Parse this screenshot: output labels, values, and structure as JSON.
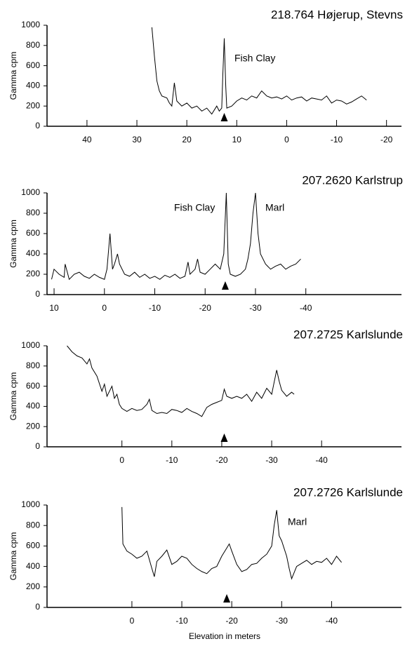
{
  "chart_data": [
    {
      "type": "line",
      "title": "218.764 Højerup, Stevns",
      "ylabel": "Gamma cpm",
      "color": "#000000",
      "xlim": [
        48,
        -23
      ],
      "ylim": [
        0,
        1000
      ],
      "xticks": [
        40,
        30,
        20,
        10,
        0,
        -10,
        -20
      ],
      "yticks": [
        0,
        200,
        400,
        600,
        800,
        1000
      ],
      "annotations": [
        "Fish Clay"
      ],
      "marker_x": 12.5,
      "x": [
        27,
        26.5,
        26,
        25.5,
        25,
        24,
        23.5,
        23,
        22.5,
        22,
        21,
        20,
        19,
        18,
        17,
        16,
        15,
        14,
        13.5,
        13,
        12.8,
        12.5,
        12.2,
        12,
        11,
        10,
        9,
        8,
        7,
        6,
        5,
        4,
        3,
        2,
        1,
        0,
        -1,
        -2,
        -3,
        -4,
        -5,
        -6,
        -7,
        -8,
        -9,
        -10,
        -11,
        -12,
        -13,
        -14,
        -15,
        -16
      ],
      "values": [
        980,
        700,
        450,
        350,
        300,
        280,
        230,
        200,
        430,
        250,
        200,
        230,
        180,
        200,
        150,
        180,
        120,
        200,
        150,
        180,
        500,
        870,
        400,
        180,
        200,
        250,
        280,
        260,
        300,
        280,
        350,
        300,
        280,
        290,
        270,
        300,
        260,
        280,
        290,
        250,
        280,
        270,
        260,
        300,
        230,
        260,
        250,
        220,
        240,
        270,
        300,
        260
      ]
    },
    {
      "type": "line",
      "title": "207.2620 Karlstrup",
      "ylabel": "Gamma cpm",
      "color": "#000000",
      "xlim": [
        11.4,
        -59
      ],
      "ylim": [
        0,
        1000
      ],
      "xticks": [
        10,
        0,
        -10,
        -20,
        -30,
        -40
      ],
      "yticks": [
        0,
        200,
        400,
        600,
        800,
        1000
      ],
      "annotations": [
        "Fish Clay",
        "Marl"
      ],
      "marker_x": -24,
      "x": [
        10.5,
        10,
        9,
        8,
        7.8,
        7,
        6,
        5,
        4,
        3,
        2,
        1,
        0,
        -0.5,
        -1.1,
        -1.6,
        -2,
        -2.6,
        -3,
        -4,
        -5,
        -6,
        -7,
        -8,
        -9,
        -10,
        -11,
        -12,
        -13,
        -14,
        -15,
        -16,
        -16.6,
        -17,
        -18,
        -18.5,
        -19,
        -20,
        -21,
        -22,
        -23,
        -23.7,
        -24.2,
        -24.6,
        -25,
        -26,
        -27,
        -28,
        -28.5,
        -29,
        -29.5,
        -30,
        -30.5,
        -31,
        -32,
        -33,
        -34,
        -35,
        -36,
        -37,
        -38,
        -39
      ],
      "values": [
        150,
        250,
        200,
        170,
        300,
        150,
        200,
        220,
        180,
        160,
        200,
        170,
        150,
        250,
        600,
        250,
        300,
        400,
        300,
        200,
        180,
        220,
        170,
        200,
        160,
        180,
        150,
        190,
        170,
        200,
        160,
        180,
        320,
        200,
        250,
        350,
        220,
        200,
        250,
        300,
        250,
        400,
        1000,
        300,
        200,
        180,
        200,
        250,
        350,
        500,
        800,
        1000,
        600,
        400,
        300,
        250,
        280,
        300,
        250,
        280,
        300,
        350
      ]
    },
    {
      "type": "line",
      "title": "207.2725 Karlslunde",
      "ylabel": "Gamma cpm",
      "color": "#000000",
      "xlim": [
        15,
        -56
      ],
      "ylim": [
        0,
        1000
      ],
      "xticks": [
        0,
        -10,
        -20,
        -30,
        -40
      ],
      "yticks": [
        0,
        200,
        400,
        600,
        800,
        1000
      ],
      "annotations": [],
      "marker_x": -20.5,
      "x": [
        11,
        10,
        9,
        8,
        7,
        6.5,
        6,
        5,
        4,
        3.5,
        3,
        2,
        1.5,
        1,
        0.5,
        0,
        -1,
        -2,
        -3,
        -4,
        -5,
        -5.5,
        -6,
        -7,
        -8,
        -9,
        -10,
        -11,
        -12,
        -13,
        -14,
        -15,
        -16,
        -17,
        -18,
        -19,
        -20,
        -20.5,
        -21,
        -22,
        -23,
        -24,
        -25,
        -26,
        -27,
        -28,
        -29,
        -30,
        -30.5,
        -31,
        -31.5,
        -32,
        -33,
        -34,
        -34.5
      ],
      "values": [
        1000,
        940,
        900,
        880,
        820,
        870,
        780,
        700,
        550,
        620,
        500,
        600,
        480,
        520,
        420,
        380,
        350,
        380,
        360,
        370,
        420,
        470,
        360,
        330,
        340,
        330,
        370,
        360,
        340,
        380,
        350,
        330,
        300,
        390,
        420,
        440,
        460,
        570,
        500,
        480,
        500,
        480,
        520,
        450,
        540,
        480,
        580,
        520,
        640,
        760,
        650,
        560,
        500,
        540,
        520
      ]
    },
    {
      "type": "line",
      "title": "207.2726 Karlslunde",
      "ylabel": "Gamma cpm",
      "xlabel": "Elevation in meters",
      "color": "#000000",
      "xlim": [
        17,
        -54
      ],
      "ylim": [
        0,
        1000
      ],
      "xticks": [
        0,
        -10,
        -20,
        -30,
        -40
      ],
      "yticks": [
        0,
        200,
        400,
        600,
        800,
        1000
      ],
      "annotations": [
        "Marl"
      ],
      "marker_x": -19,
      "x": [
        2,
        1.8,
        1,
        0,
        -1,
        -2,
        -3,
        -4,
        -4.5,
        -5,
        -6,
        -7,
        -8,
        -9,
        -10,
        -11,
        -12,
        -13,
        -14,
        -15,
        -16,
        -17,
        -18,
        -19,
        -19.5,
        -20,
        -21,
        -22,
        -23,
        -24,
        -25,
        -26,
        -27,
        -28,
        -28.5,
        -29,
        -29.5,
        -30,
        -31,
        -31.5,
        -32,
        -33,
        -34,
        -35,
        -36,
        -37,
        -38,
        -39,
        -40,
        -41,
        -42
      ],
      "values": [
        980,
        620,
        550,
        520,
        480,
        500,
        550,
        380,
        300,
        450,
        500,
        560,
        420,
        450,
        500,
        480,
        420,
        380,
        350,
        330,
        380,
        400,
        500,
        580,
        620,
        550,
        420,
        350,
        370,
        420,
        430,
        480,
        520,
        600,
        800,
        950,
        700,
        650,
        500,
        380,
        280,
        400,
        430,
        460,
        420,
        450,
        440,
        480,
        420,
        500,
        440
      ]
    }
  ]
}
